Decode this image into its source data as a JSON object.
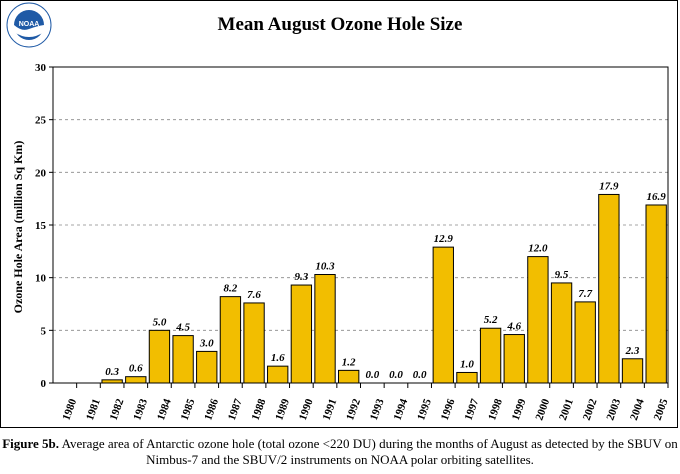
{
  "logo": {
    "text": "NOAA",
    "ring_text": "NATIONAL OCEANIC AND ATMOSPHERIC ADMINISTRATION · U.S. DEPARTMENT OF COMMERCE"
  },
  "colors": {
    "bar": "#f2be00",
    "bar_stroke": "#000000",
    "grid": "#888888",
    "logo_blue": "#1f5aa6"
  },
  "chart_data": {
    "type": "bar",
    "title": "Mean August Ozone Hole Size",
    "xlabel": "",
    "ylabel": "Ozone Hole Area (million Sq Km)",
    "ylim": [
      0,
      30
    ],
    "yticks": [
      0,
      5,
      10,
      15,
      20,
      25,
      30
    ],
    "grid": true,
    "categories": [
      "1980",
      "1981",
      "1982",
      "1983",
      "1984",
      "1985",
      "1986",
      "1987",
      "1988",
      "1989",
      "1990",
      "1991",
      "1992",
      "1993",
      "1994",
      "1995",
      "1996",
      "1997",
      "1998",
      "1999",
      "2000",
      "2001",
      "2002",
      "2003",
      "2004",
      "2005"
    ],
    "values": [
      null,
      null,
      0.3,
      0.6,
      5.0,
      4.5,
      3.0,
      8.2,
      7.6,
      1.6,
      9.3,
      10.3,
      1.2,
      0.0,
      0.0,
      0.0,
      12.9,
      1.0,
      5.2,
      4.6,
      12.0,
      9.5,
      7.7,
      17.9,
      2.3,
      16.9
    ],
    "data_labels": [
      "",
      "",
      "0.3",
      "0.6",
      "5.0",
      "4.5",
      "3.0",
      "8.2",
      "7.6",
      "1.6",
      "9.3",
      "10.3",
      "1.2",
      "0.0",
      "0.0",
      "0.0",
      "12.9",
      "1.0",
      "5.2",
      "4.6",
      "12.0",
      "9.5",
      "7.7",
      "17.9",
      "2.3",
      "16.9"
    ]
  },
  "caption": {
    "label": "Figure 5b.",
    "text": "Average area of Antarctic ozone hole (total ozone <220 DU) during the months of August as detected by the SBUV on Nimbus-7 and the SBUV/2 instruments on NOAA polar orbiting satellites."
  }
}
